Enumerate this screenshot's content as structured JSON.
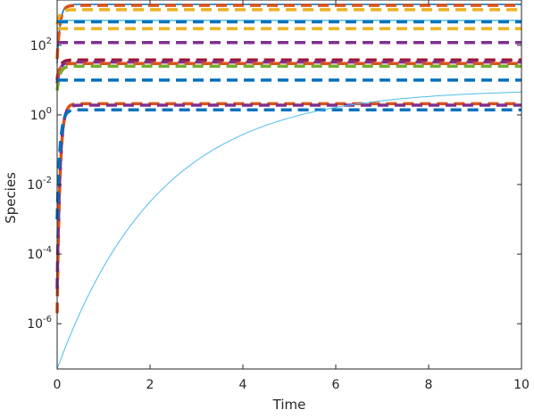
{
  "chart_data": {
    "type": "line",
    "title": "",
    "xlabel": "Time",
    "ylabel": "Species",
    "xlim": [
      0,
      10
    ],
    "ylim": [
      5e-08,
      2000
    ],
    "yscale": "log",
    "grid": false,
    "x_ticks": [
      0,
      2,
      4,
      6,
      8,
      10
    ],
    "y_ticks": [
      {
        "base": "10",
        "exp": "-6",
        "value": 1e-06
      },
      {
        "base": "10",
        "exp": "-4",
        "value": 0.0001
      },
      {
        "base": "10",
        "exp": "-2",
        "value": 0.01
      },
      {
        "base": "10",
        "exp": "0",
        "value": 1
      },
      {
        "base": "10",
        "exp": "2",
        "value": 100
      }
    ],
    "series": [
      {
        "style": "solid",
        "color": "#0072BD",
        "start": 30,
        "end": 1500
      },
      {
        "style": "dashed",
        "color": "#D95319",
        "start": 40,
        "end": 1400
      },
      {
        "style": "dashed",
        "color": "#EDB120",
        "start": 400,
        "end": 1050
      },
      {
        "style": "solid",
        "color": "#4DBEEE",
        "start": 500,
        "end": 520
      },
      {
        "style": "dashed",
        "color": "#0072BD",
        "start": 480,
        "end": 470
      },
      {
        "style": "dashed",
        "color": "#EDB120",
        "start": 300,
        "end": 300
      },
      {
        "style": "dashed",
        "color": "#7E2F8E",
        "start": 120,
        "end": 120
      },
      {
        "style": "dashed",
        "color": "#A2142F",
        "start": 10,
        "end": 38
      },
      {
        "style": "dashed",
        "color": "#7E2F8E",
        "start": 8,
        "end": 33
      },
      {
        "style": "dashed",
        "color": "#D95319",
        "start": 12,
        "end": 30
      },
      {
        "style": "dashed",
        "color": "#77AC30",
        "start": 5,
        "end": 25
      },
      {
        "style": "dashed",
        "color": "#0072BD",
        "start": 10,
        "end": 10
      },
      {
        "style": "dashed",
        "color": "#D95319",
        "start": 2e-06,
        "end": 2.1
      },
      {
        "style": "dashed",
        "color": "#7E2F8E",
        "start": 1e-05,
        "end": 1.9
      },
      {
        "style": "dashed",
        "color": "#0072BD",
        "start": 0.001,
        "end": 1.4
      },
      {
        "style": "thin",
        "color": "#4DBEEE",
        "start": 5e-08,
        "end": 5.5
      }
    ]
  }
}
